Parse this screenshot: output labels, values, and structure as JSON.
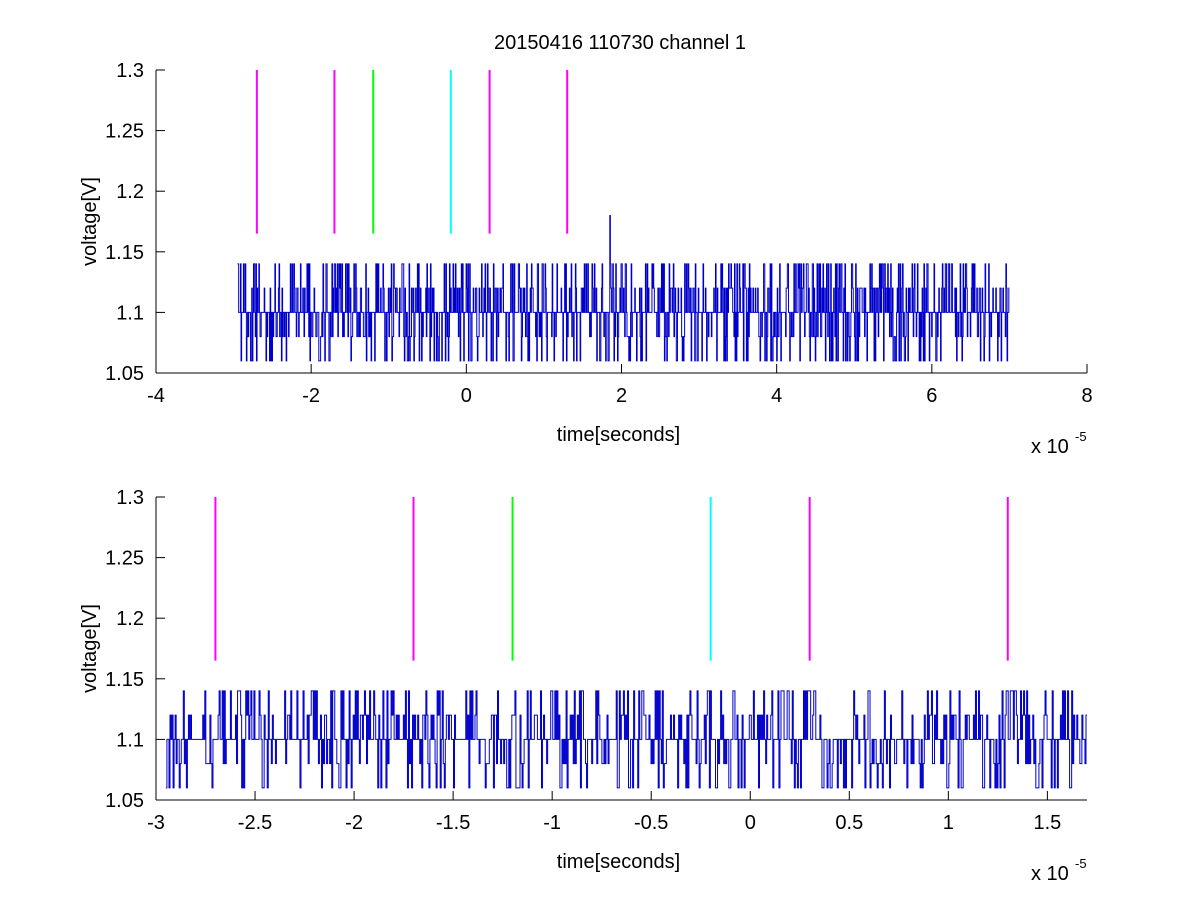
{
  "figure": {
    "title": "20150416 110730 channel 1",
    "background": "#ffffff",
    "signal_color": "#0000cc",
    "marker_colors": {
      "magenta": "#ff00ff",
      "green": "#00ff00",
      "cyan": "#00ffff"
    }
  },
  "chart_data": [
    {
      "type": "line",
      "xlabel": "time[seconds]",
      "ylabel": "voltage[V]",
      "x_exponent_base": "x 10",
      "x_exponent": "-5",
      "x_scale": 1e-05,
      "xlim": [
        -4,
        8
      ],
      "ylim": [
        1.05,
        1.3
      ],
      "xticks": [
        -4,
        -2,
        0,
        2,
        4,
        6,
        8
      ],
      "xtick_labels": [
        "-4",
        "-2",
        "0",
        "2",
        "4",
        "6",
        "8"
      ],
      "yticks": [
        1.05,
        1.1,
        1.15,
        1.2,
        1.25,
        1.3
      ],
      "ytick_labels": [
        "1.05",
        "1.1",
        "1.15",
        "1.2",
        "1.25",
        "1.3"
      ],
      "grid": false,
      "signal": {
        "x_start": -2.95,
        "x_end": 7.0,
        "samples": 1300,
        "levels": [
          1.06,
          1.08,
          1.1,
          1.12,
          1.14
        ],
        "spikes": [
          [
            1.85,
            1.18
          ]
        ]
      },
      "markers": [
        {
          "x": -2.7,
          "y_from": 1.165,
          "y_to": 1.3,
          "color": "#ff00ff"
        },
        {
          "x": -1.7,
          "y_from": 1.165,
          "y_to": 1.3,
          "color": "#ff00ff"
        },
        {
          "x": -1.2,
          "y_from": 1.165,
          "y_to": 1.3,
          "color": "#00ff00"
        },
        {
          "x": -0.2,
          "y_from": 1.165,
          "y_to": 1.3,
          "color": "#00ffff"
        },
        {
          "x": 0.3,
          "y_from": 1.165,
          "y_to": 1.3,
          "color": "#ff00ff"
        },
        {
          "x": 1.3,
          "y_from": 1.165,
          "y_to": 1.3,
          "color": "#ff00ff"
        }
      ]
    },
    {
      "type": "line",
      "xlabel": "time[seconds]",
      "ylabel": "voltage[V]",
      "x_exponent_base": "x 10",
      "x_exponent": "-5",
      "x_scale": 1e-05,
      "xlim": [
        -3.0,
        1.7
      ],
      "ylim": [
        1.05,
        1.3
      ],
      "xticks": [
        -3,
        -2.5,
        -2,
        -1.5,
        -1,
        -0.5,
        0,
        0.5,
        1,
        1.5
      ],
      "xtick_labels": [
        "-3",
        "-2.5",
        "-2",
        "-1.5",
        "-1",
        "-0.5",
        "0",
        "0.5",
        "1",
        "1.5"
      ],
      "yticks": [
        1.05,
        1.1,
        1.15,
        1.2,
        1.25,
        1.3
      ],
      "ytick_labels": [
        "1.05",
        "1.1",
        "1.15",
        "1.2",
        "1.25",
        "1.3"
      ],
      "grid": false,
      "signal": {
        "x_start": -2.95,
        "x_end": 1.7,
        "samples": 900,
        "levels": [
          1.06,
          1.08,
          1.1,
          1.12,
          1.14
        ],
        "spikes": []
      },
      "markers": [
        {
          "x": -2.7,
          "y_from": 1.165,
          "y_to": 1.3,
          "color": "#ff00ff"
        },
        {
          "x": -1.7,
          "y_from": 1.165,
          "y_to": 1.3,
          "color": "#ff00ff"
        },
        {
          "x": -1.2,
          "y_from": 1.165,
          "y_to": 1.3,
          "color": "#00ff00"
        },
        {
          "x": -0.2,
          "y_from": 1.165,
          "y_to": 1.3,
          "color": "#00ffff"
        },
        {
          "x": 0.3,
          "y_from": 1.165,
          "y_to": 1.3,
          "color": "#ff00ff"
        },
        {
          "x": 1.3,
          "y_from": 1.165,
          "y_to": 1.3,
          "color": "#ff00ff"
        }
      ]
    }
  ]
}
